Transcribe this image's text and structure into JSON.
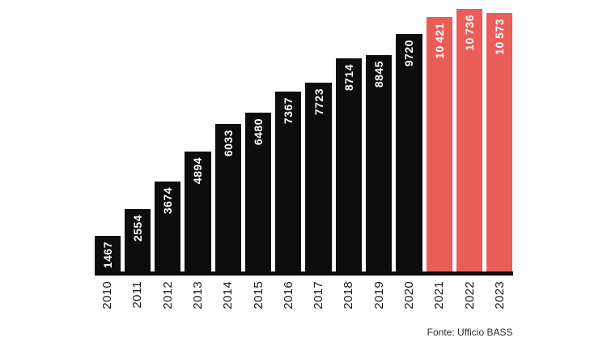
{
  "chart_data": {
    "type": "bar",
    "title": "",
    "xlabel": "",
    "ylabel": "",
    "categories": [
      "2010",
      "2011",
      "2012",
      "2013",
      "2014",
      "2015",
      "2016",
      "2017",
      "2018",
      "2019",
      "2020",
      "2021",
      "2022",
      "2023"
    ],
    "values": [
      1467,
      2554,
      3674,
      4894,
      6033,
      6480,
      7367,
      7723,
      8714,
      8845,
      9720,
      10421,
      10736,
      10573
    ],
    "value_labels": [
      "1467",
      "2554",
      "3674",
      "4894",
      "6033",
      "6480",
      "7367",
      "7723",
      "8714",
      "8845",
      "9720",
      "10 421",
      "10 736",
      "10 573"
    ],
    "highlight_years": [
      "2021",
      "2022",
      "2023"
    ],
    "bar_color": "#0d0d0d",
    "highlight_color": "#ea5e59",
    "value_label_color": "#ffffff",
    "tick_label_color": "#1a1a1a",
    "axis_line_color": "#0d0d0d",
    "ylim": [
      0,
      10736
    ],
    "grid": "off",
    "legend": "none",
    "label_orientation": "rotated-90-bottom-to-top"
  },
  "footer": {
    "source": "Fonte: Ufficio BASS",
    "source_color": "#2a2a2a"
  }
}
